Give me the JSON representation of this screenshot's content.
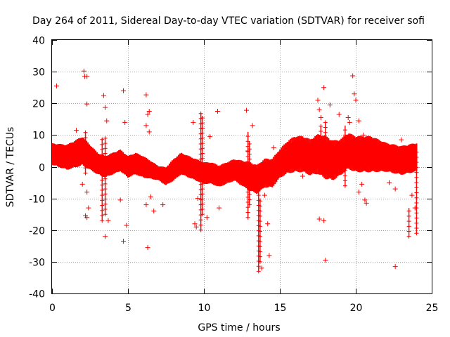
{
  "chart_data": {
    "type": "scatter",
    "title": "Day 264 of 2011, Sidereal Day-to-day VTEC variation (SDTVAR) for receiver sofi",
    "xlabel": "GPS time / hours",
    "ylabel": "SDTVAR / TECUs",
    "xlim": [
      0,
      25
    ],
    "ylim": [
      -40,
      40
    ],
    "xticks": [
      0,
      5,
      10,
      15,
      20,
      25
    ],
    "yticks": [
      -40,
      -30,
      -20,
      -10,
      0,
      10,
      20,
      30,
      40
    ],
    "grid": true,
    "marker": "+",
    "color": "#ff0000",
    "series": [
      {
        "name": "SDTVAR",
        "band_center": [
          [
            0,
            4
          ],
          [
            1,
            3
          ],
          [
            1.5,
            4
          ],
          [
            2,
            5
          ],
          [
            2.5,
            3
          ],
          [
            3,
            1
          ],
          [
            3.5,
            0
          ],
          [
            4,
            1
          ],
          [
            4.5,
            2
          ],
          [
            5,
            0
          ],
          [
            5.5,
            1
          ],
          [
            6,
            0
          ],
          [
            6.5,
            -1
          ],
          [
            7,
            -2
          ],
          [
            7.5,
            -3
          ],
          [
            8,
            -1
          ],
          [
            8.5,
            1
          ],
          [
            9,
            0
          ],
          [
            9.5,
            -1
          ],
          [
            10,
            -2
          ],
          [
            10.5,
            -2
          ],
          [
            11,
            -3
          ],
          [
            11.5,
            -2
          ],
          [
            12,
            -1
          ],
          [
            12.5,
            -2
          ],
          [
            13,
            -3
          ],
          [
            13.5,
            -4
          ],
          [
            14,
            -2
          ],
          [
            14.5,
            -2
          ],
          [
            15,
            1
          ],
          [
            15.5,
            3
          ],
          [
            16,
            4
          ],
          [
            16.5,
            4
          ],
          [
            17,
            3
          ],
          [
            17.5,
            4
          ],
          [
            18,
            3
          ],
          [
            18.5,
            2
          ],
          [
            19,
            3
          ],
          [
            19.5,
            5
          ],
          [
            20,
            4
          ],
          [
            21,
            4
          ],
          [
            22,
            3
          ],
          [
            23,
            2
          ],
          [
            24,
            3
          ]
        ],
        "band_halfwidth": [
          [
            0,
            3
          ],
          [
            2,
            4
          ],
          [
            3,
            3
          ],
          [
            4,
            3
          ],
          [
            5,
            3
          ],
          [
            6,
            3
          ],
          [
            7,
            2
          ],
          [
            8,
            3
          ],
          [
            9,
            3
          ],
          [
            10,
            3
          ],
          [
            11,
            3
          ],
          [
            12,
            3
          ],
          [
            13,
            4
          ],
          [
            14,
            4
          ],
          [
            15,
            4
          ],
          [
            16,
            5
          ],
          [
            17,
            5
          ],
          [
            18,
            6
          ],
          [
            19,
            5
          ],
          [
            20,
            5
          ],
          [
            21,
            5
          ],
          [
            22,
            4
          ],
          [
            23,
            4
          ],
          [
            24,
            4
          ]
        ],
        "spikes": [
          {
            "x": 2.2,
            "from": -2,
            "to": 11
          },
          {
            "x": 3.3,
            "from": -17,
            "to": 9
          },
          {
            "x": 3.5,
            "from": -15,
            "to": 9
          },
          {
            "x": 9.8,
            "from": -20,
            "to": 17
          },
          {
            "x": 9.9,
            "from": -15,
            "to": 16
          },
          {
            "x": 12.9,
            "from": -16,
            "to": 11
          },
          {
            "x": 13.0,
            "from": -12,
            "to": 8
          },
          {
            "x": 13.6,
            "from": -33,
            "to": -5
          },
          {
            "x": 13.7,
            "from": -30,
            "to": -10
          },
          {
            "x": 17.7,
            "from": 0,
            "to": 13
          },
          {
            "x": 18.0,
            "from": -2,
            "to": 14
          },
          {
            "x": 19.3,
            "from": -6,
            "to": 13
          },
          {
            "x": 23.5,
            "from": -22,
            "to": -13
          },
          {
            "x": 24.0,
            "from": -21,
            "to": 6
          }
        ],
        "outliers": [
          [
            0.3,
            25.5
          ],
          [
            2.1,
            30.2
          ],
          [
            2.15,
            28.5
          ],
          [
            2.3,
            28.5
          ],
          [
            2.3,
            19.8
          ],
          [
            1.6,
            11.5
          ],
          [
            2.0,
            -5.5
          ],
          [
            2.3,
            -8
          ],
          [
            2.2,
            -15.5
          ],
          [
            2.4,
            -13
          ],
          [
            2.3,
            -16
          ],
          [
            3.4,
            22.5
          ],
          [
            3.5,
            18.7
          ],
          [
            3.6,
            14.5
          ],
          [
            3.5,
            -22
          ],
          [
            3.7,
            -17
          ],
          [
            4.7,
            24
          ],
          [
            4.8,
            14
          ],
          [
            4.9,
            -18.5
          ],
          [
            4.7,
            -23.5
          ],
          [
            4.5,
            -10.5
          ],
          [
            6.2,
            22.7
          ],
          [
            6.3,
            16.5
          ],
          [
            6.4,
            17.5
          ],
          [
            6.2,
            13
          ],
          [
            6.4,
            11
          ],
          [
            6.2,
            -12
          ],
          [
            6.3,
            -25.5
          ],
          [
            6.5,
            -9.5
          ],
          [
            6.7,
            -14
          ],
          [
            7.3,
            -12
          ],
          [
            9.3,
            14
          ],
          [
            9.4,
            -18
          ],
          [
            9.5,
            -19
          ],
          [
            9.6,
            -10
          ],
          [
            10.4,
            9.5
          ],
          [
            10.9,
            17.5
          ],
          [
            11.0,
            -13
          ],
          [
            10.2,
            -16
          ],
          [
            12.8,
            17.8
          ],
          [
            12.9,
            5
          ],
          [
            13.2,
            13
          ],
          [
            13.8,
            -32
          ],
          [
            14.2,
            -18
          ],
          [
            14.3,
            -28
          ],
          [
            14.6,
            6
          ],
          [
            14.0,
            -9
          ],
          [
            16.5,
            -3
          ],
          [
            16.8,
            4
          ],
          [
            17.5,
            21
          ],
          [
            17.9,
            25
          ],
          [
            17.6,
            -16.5
          ],
          [
            17.9,
            -17
          ],
          [
            18.0,
            -29.5
          ],
          [
            17.6,
            18
          ],
          [
            17.7,
            15.5
          ],
          [
            18.3,
            19.5
          ],
          [
            18.9,
            16.5
          ],
          [
            19.5,
            15.5
          ],
          [
            19.6,
            14
          ],
          [
            19.8,
            28.7
          ],
          [
            19.9,
            23
          ],
          [
            20.0,
            21
          ],
          [
            20.2,
            14.5
          ],
          [
            20.4,
            -5.5
          ],
          [
            20.6,
            -10.5
          ],
          [
            20.7,
            -11.5
          ],
          [
            20.5,
            10
          ],
          [
            20.2,
            -8
          ],
          [
            22.2,
            -5
          ],
          [
            22.6,
            -7
          ],
          [
            22.6,
            -31.5
          ],
          [
            23.0,
            8.5
          ],
          [
            23.7,
            -9
          ],
          [
            23.9,
            -13
          ]
        ]
      }
    ]
  }
}
